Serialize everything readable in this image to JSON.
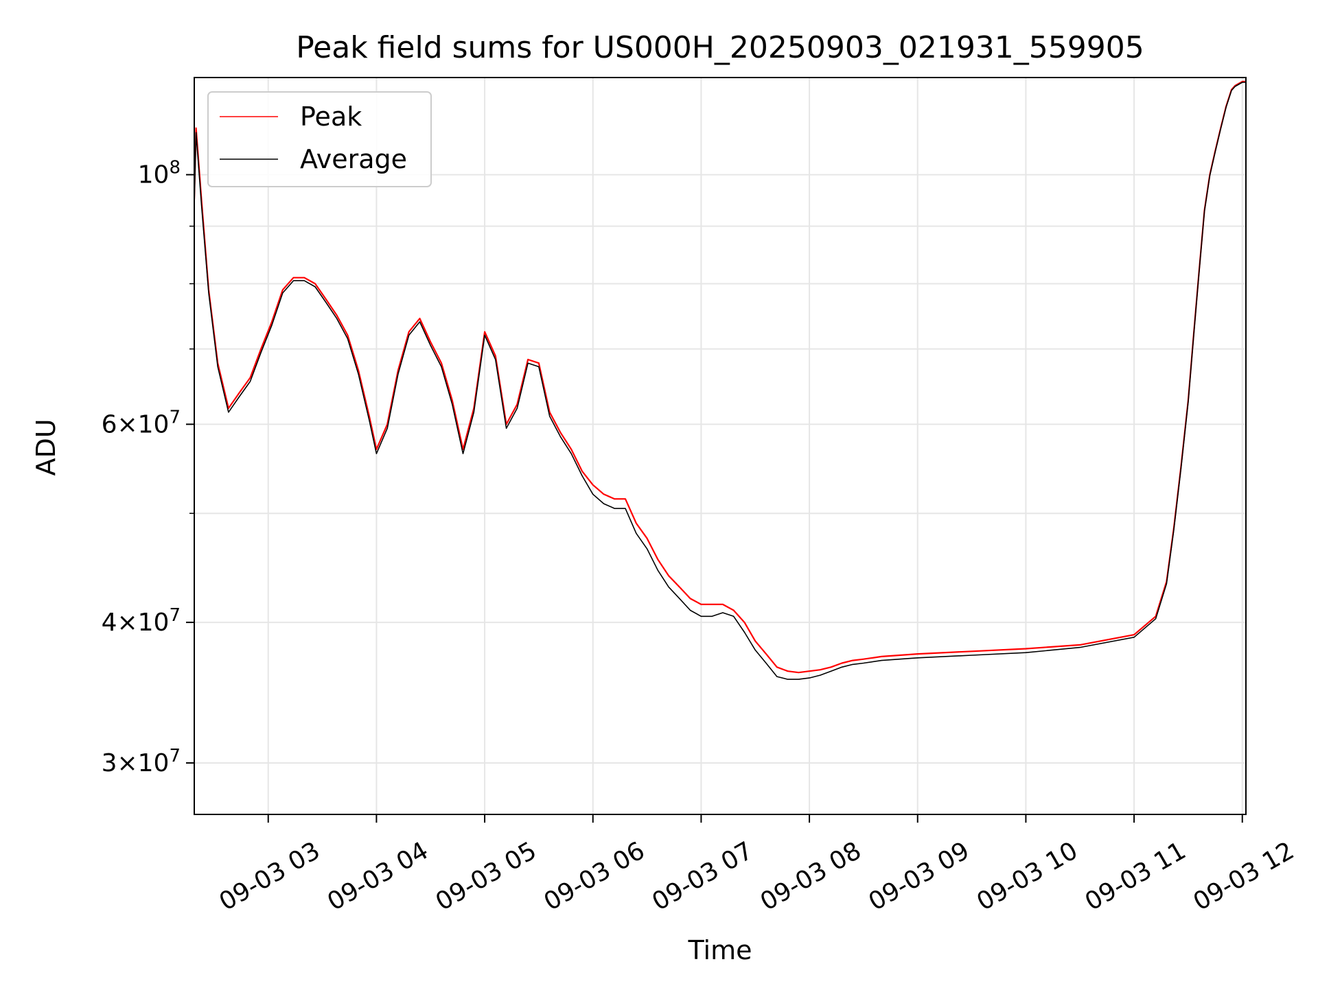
{
  "chart_data": {
    "type": "line",
    "title": "Peak field sums for US000H_20250903_021931_559905",
    "xlabel": "Time",
    "ylabel": "ADU",
    "yscale": "log",
    "ylim": [
      27000000,
      122000000
    ],
    "xlim": [
      "2025-09-03 02:19",
      "2025-09-03 12:02"
    ],
    "grid": true,
    "legend_position": "upper-left",
    "x_tick_labels": [
      "09-03 03",
      "09-03 04",
      "09-03 05",
      "09-03 06",
      "09-03 07",
      "09-03 08",
      "09-03 09",
      "09-03 10",
      "09-03 11",
      "09-03 12"
    ],
    "x_ticks": [
      "2025-09-03 03:00",
      "2025-09-03 04:00",
      "2025-09-03 05:00",
      "2025-09-03 06:00",
      "2025-09-03 07:00",
      "2025-09-03 08:00",
      "2025-09-03 09:00",
      "2025-09-03 10:00",
      "2025-09-03 11:00",
      "2025-09-03 12:00"
    ],
    "y_major_ticks": [
      {
        "value": 30000000,
        "mantissa": "3",
        "exponent": "7"
      },
      {
        "value": 40000000,
        "mantissa": "4",
        "exponent": "7"
      },
      {
        "value": 60000000,
        "mantissa": "6",
        "exponent": "7"
      },
      {
        "value": 100000000,
        "mantissa": "",
        "exponent": "8"
      }
    ],
    "y_minor_ticks": [
      50000000,
      70000000,
      80000000,
      90000000
    ],
    "series": [
      {
        "name": "Peak",
        "color": "#ff0000",
        "x": [
          "2025-09-03 02:19",
          "2025-09-03 02:20",
          "2025-09-03 02:23",
          "2025-09-03 02:27",
          "2025-09-03 02:32",
          "2025-09-03 02:38",
          "2025-09-03 02:44",
          "2025-09-03 02:50",
          "2025-09-03 02:56",
          "2025-09-03 03:02",
          "2025-09-03 03:08",
          "2025-09-03 03:14",
          "2025-09-03 03:20",
          "2025-09-03 03:26",
          "2025-09-03 03:32",
          "2025-09-03 03:38",
          "2025-09-03 03:44",
          "2025-09-03 03:50",
          "2025-09-03 03:56",
          "2025-09-03 04:00",
          "2025-09-03 04:06",
          "2025-09-03 04:12",
          "2025-09-03 04:18",
          "2025-09-03 04:24",
          "2025-09-03 04:30",
          "2025-09-03 04:36",
          "2025-09-03 04:42",
          "2025-09-03 04:48",
          "2025-09-03 04:54",
          "2025-09-03 05:00",
          "2025-09-03 05:06",
          "2025-09-03 05:12",
          "2025-09-03 05:18",
          "2025-09-03 05:24",
          "2025-09-03 05:30",
          "2025-09-03 05:36",
          "2025-09-03 05:42",
          "2025-09-03 05:48",
          "2025-09-03 05:54",
          "2025-09-03 06:00",
          "2025-09-03 06:06",
          "2025-09-03 06:12",
          "2025-09-03 06:18",
          "2025-09-03 06:24",
          "2025-09-03 06:30",
          "2025-09-03 06:36",
          "2025-09-03 06:42",
          "2025-09-03 06:48",
          "2025-09-03 06:54",
          "2025-09-03 07:00",
          "2025-09-03 07:06",
          "2025-09-03 07:12",
          "2025-09-03 07:18",
          "2025-09-03 07:24",
          "2025-09-03 07:30",
          "2025-09-03 07:36",
          "2025-09-03 07:42",
          "2025-09-03 07:48",
          "2025-09-03 07:54",
          "2025-09-03 08:00",
          "2025-09-03 08:06",
          "2025-09-03 08:12",
          "2025-09-03 08:18",
          "2025-09-03 08:24",
          "2025-09-03 08:30",
          "2025-09-03 08:40",
          "2025-09-03 09:00",
          "2025-09-03 09:30",
          "2025-09-03 10:00",
          "2025-09-03 10:30",
          "2025-09-03 11:00",
          "2025-09-03 11:12",
          "2025-09-03 11:18",
          "2025-09-03 11:22",
          "2025-09-03 11:26",
          "2025-09-03 11:30",
          "2025-09-03 11:33",
          "2025-09-03 11:36",
          "2025-09-03 11:39",
          "2025-09-03 11:42",
          "2025-09-03 11:45",
          "2025-09-03 11:48",
          "2025-09-03 11:51",
          "2025-09-03 11:54",
          "2025-09-03 11:56",
          "2025-09-03 11:58",
          "2025-09-03 12:00",
          "2025-09-03 12:02"
        ],
        "values": [
          95000000,
          110000000,
          95000000,
          79000000,
          68000000,
          62000000,
          64000000,
          66000000,
          70000000,
          74000000,
          79000000,
          81000000,
          81000000,
          80000000,
          77500000,
          75000000,
          72000000,
          67000000,
          61000000,
          57000000,
          60000000,
          67000000,
          72500000,
          74500000,
          71000000,
          68000000,
          63000000,
          57000000,
          62000000,
          72500000,
          69000000,
          60000000,
          62500000,
          68500000,
          68000000,
          61500000,
          59000000,
          57000000,
          54500000,
          53000000,
          52000000,
          51500000,
          51500000,
          49000000,
          47500000,
          45500000,
          44000000,
          43000000,
          42000000,
          41500000,
          41500000,
          41500000,
          41000000,
          40000000,
          38500000,
          37500000,
          36500000,
          36200000,
          36100000,
          36200000,
          36300000,
          36500000,
          36800000,
          37000000,
          37100000,
          37300000,
          37500000,
          37700000,
          37900000,
          38200000,
          39000000,
          40500000,
          43500000,
          48500000,
          55000000,
          63000000,
          72000000,
          82000000,
          93000000,
          100000000,
          105000000,
          110000000,
          115000000,
          119000000,
          120000000,
          120500000,
          121000000,
          121000000
        ]
      },
      {
        "name": "Average",
        "color": "#000000",
        "x": [
          "2025-09-03 02:19",
          "2025-09-03 02:20",
          "2025-09-03 02:23",
          "2025-09-03 02:27",
          "2025-09-03 02:32",
          "2025-09-03 02:38",
          "2025-09-03 02:44",
          "2025-09-03 02:50",
          "2025-09-03 02:56",
          "2025-09-03 03:02",
          "2025-09-03 03:08",
          "2025-09-03 03:14",
          "2025-09-03 03:20",
          "2025-09-03 03:26",
          "2025-09-03 03:32",
          "2025-09-03 03:38",
          "2025-09-03 03:44",
          "2025-09-03 03:50",
          "2025-09-03 03:56",
          "2025-09-03 04:00",
          "2025-09-03 04:06",
          "2025-09-03 04:12",
          "2025-09-03 04:18",
          "2025-09-03 04:24",
          "2025-09-03 04:30",
          "2025-09-03 04:36",
          "2025-09-03 04:42",
          "2025-09-03 04:48",
          "2025-09-03 04:54",
          "2025-09-03 05:00",
          "2025-09-03 05:06",
          "2025-09-03 05:12",
          "2025-09-03 05:18",
          "2025-09-03 05:24",
          "2025-09-03 05:30",
          "2025-09-03 05:36",
          "2025-09-03 05:42",
          "2025-09-03 05:48",
          "2025-09-03 05:54",
          "2025-09-03 06:00",
          "2025-09-03 06:06",
          "2025-09-03 06:12",
          "2025-09-03 06:18",
          "2025-09-03 06:24",
          "2025-09-03 06:30",
          "2025-09-03 06:36",
          "2025-09-03 06:42",
          "2025-09-03 06:48",
          "2025-09-03 06:54",
          "2025-09-03 07:00",
          "2025-09-03 07:06",
          "2025-09-03 07:12",
          "2025-09-03 07:18",
          "2025-09-03 07:24",
          "2025-09-03 07:30",
          "2025-09-03 07:36",
          "2025-09-03 07:42",
          "2025-09-03 07:48",
          "2025-09-03 07:54",
          "2025-09-03 08:00",
          "2025-09-03 08:06",
          "2025-09-03 08:12",
          "2025-09-03 08:18",
          "2025-09-03 08:24",
          "2025-09-03 08:30",
          "2025-09-03 08:40",
          "2025-09-03 09:00",
          "2025-09-03 09:30",
          "2025-09-03 10:00",
          "2025-09-03 10:30",
          "2025-09-03 11:00",
          "2025-09-03 11:12",
          "2025-09-03 11:18",
          "2025-09-03 11:22",
          "2025-09-03 11:26",
          "2025-09-03 11:30",
          "2025-09-03 11:33",
          "2025-09-03 11:36",
          "2025-09-03 11:39",
          "2025-09-03 11:42",
          "2025-09-03 11:45",
          "2025-09-03 11:48",
          "2025-09-03 11:51",
          "2025-09-03 11:54",
          "2025-09-03 11:56",
          "2025-09-03 11:58",
          "2025-09-03 12:00",
          "2025-09-03 12:02"
        ],
        "values": [
          94000000,
          109000000,
          94000000,
          78500000,
          67500000,
          61500000,
          63500000,
          65500000,
          69500000,
          73500000,
          78500000,
          80500000,
          80500000,
          79500000,
          77000000,
          74500000,
          71500000,
          66500000,
          60500000,
          56500000,
          59500000,
          66500000,
          72000000,
          74000000,
          70500000,
          67500000,
          62500000,
          56500000,
          61500000,
          72000000,
          68500000,
          59500000,
          62000000,
          68000000,
          67500000,
          61000000,
          58500000,
          56500000,
          54000000,
          52000000,
          51000000,
          50500000,
          50500000,
          48000000,
          46500000,
          44500000,
          43000000,
          42000000,
          41000000,
          40500000,
          40500000,
          40800000,
          40500000,
          39200000,
          37800000,
          36800000,
          35800000,
          35600000,
          35600000,
          35700000,
          35900000,
          36200000,
          36500000,
          36700000,
          36800000,
          37000000,
          37200000,
          37400000,
          37600000,
          38000000,
          38800000,
          40300000,
          43300000,
          48300000,
          54800000,
          62800000,
          71800000,
          81800000,
          92800000,
          99800000,
          104800000,
          109800000,
          114800000,
          118800000,
          119800000,
          120300000,
          120800000,
          120800000
        ]
      }
    ]
  }
}
